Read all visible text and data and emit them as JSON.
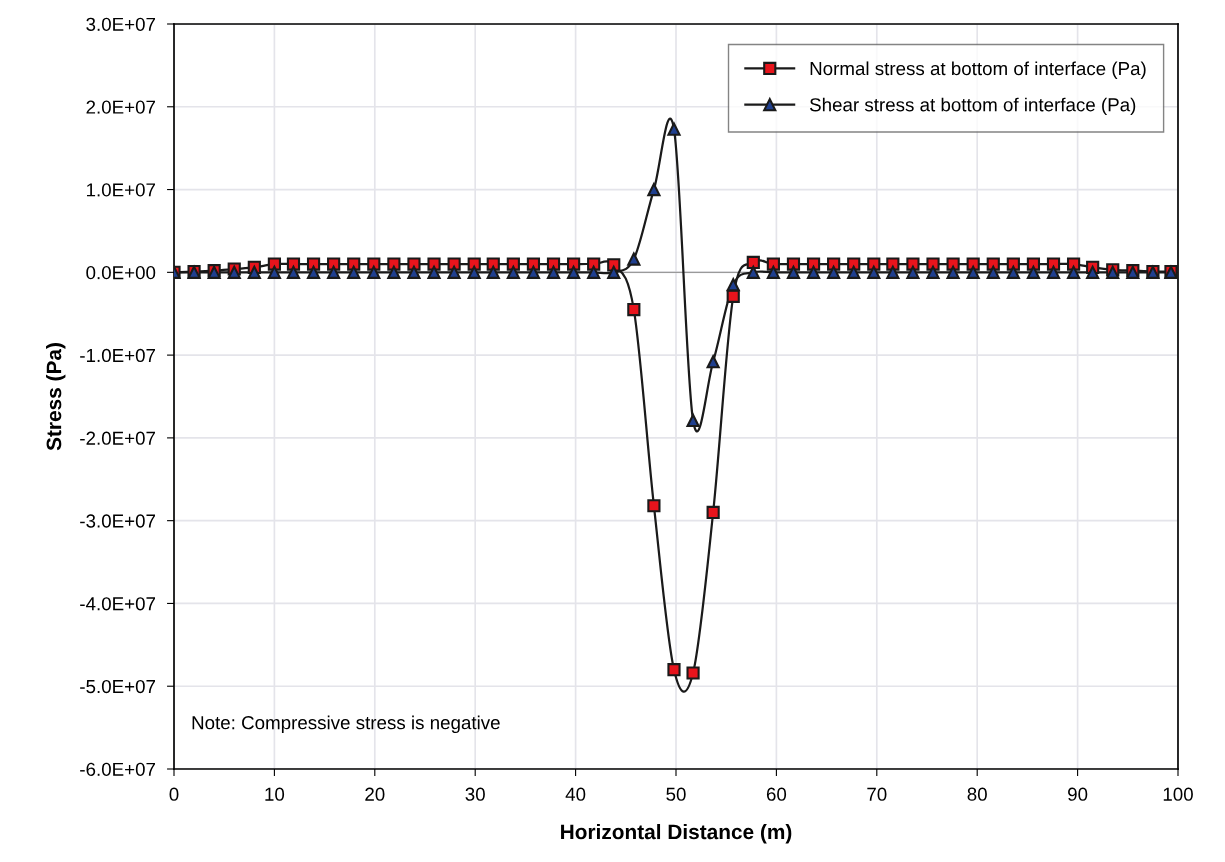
{
  "chart_data": {
    "type": "line",
    "xlabel": "Horizontal Distance (m)",
    "ylabel": "Stress (Pa)",
    "x": [
      0,
      2,
      4,
      6,
      8,
      10,
      11.9,
      13.9,
      15.9,
      17.9,
      19.9,
      21.9,
      23.9,
      25.9,
      27.9,
      29.9,
      31.8,
      33.8,
      35.8,
      37.8,
      39.8,
      41.8,
      43.8,
      45.8,
      47.8,
      49.8,
      51.7,
      53.7,
      55.7,
      57.7,
      59.7,
      61.7,
      63.7,
      65.7,
      67.7,
      69.7,
      71.6,
      73.6,
      75.6,
      77.6,
      79.6,
      81.6,
      83.6,
      85.6,
      87.6,
      89.6,
      91.5,
      93.5,
      95.5,
      97.5,
      99.3
    ],
    "series": [
      {
        "name": "Normal stress at bottom of interface (Pa)",
        "color": "#e8141c",
        "marker": "square",
        "values": [
          0,
          100000,
          200000,
          400000,
          600000,
          1000000,
          1000000,
          1000000,
          1000000,
          1000000,
          1000000,
          1000000,
          1000000,
          1000000,
          1000000,
          1000000,
          1000000,
          1000000,
          1000000,
          1000000,
          1000000,
          1000000,
          900000,
          -4500000,
          -28200000,
          -48000000,
          -48400000,
          -29000000,
          -2900000,
          1200000,
          1000000,
          1000000,
          1000000,
          1000000,
          1000000,
          1000000,
          1000000,
          1000000,
          1000000,
          1000000,
          1000000,
          1000000,
          1000000,
          1000000,
          1000000,
          1000000,
          600000,
          300000,
          200000,
          100000,
          100000
        ]
      },
      {
        "name": "Shear stress at bottom of interface (Pa)",
        "color": "#1f3f8f",
        "marker": "triangle",
        "values": [
          0,
          0,
          0,
          0,
          0,
          0,
          0,
          0,
          0,
          0,
          0,
          0,
          0,
          0,
          0,
          0,
          0,
          0,
          0,
          0,
          0,
          0,
          0,
          1600000,
          10000000,
          17300000,
          -17900000,
          -10800000,
          -1500000,
          0,
          0,
          0,
          0,
          0,
          0,
          0,
          0,
          0,
          0,
          0,
          0,
          0,
          0,
          0,
          0,
          0,
          0,
          0,
          0,
          0,
          0
        ]
      }
    ],
    "xlim": [
      0,
      100
    ],
    "xticks": [
      0,
      10,
      20,
      30,
      40,
      50,
      60,
      70,
      80,
      90,
      100
    ],
    "ylim": [
      -60000000,
      30000000
    ],
    "yticks": [
      {
        "value": -60000000,
        "label": "-6.0E+07"
      },
      {
        "value": -50000000,
        "label": "-5.0E+07"
      },
      {
        "value": -40000000,
        "label": "-4.0E+07"
      },
      {
        "value": -30000000,
        "label": "-3.0E+07"
      },
      {
        "value": -20000000,
        "label": "-2.0E+07"
      },
      {
        "value": -10000000,
        "label": "-1.0E+07"
      },
      {
        "value": 0,
        "label": "0.0E+00"
      },
      {
        "value": 10000000,
        "label": "1.0E+07"
      },
      {
        "value": 20000000,
        "label": "2.0E+07"
      },
      {
        "value": 30000000,
        "label": "3.0E+07"
      }
    ],
    "grid": true,
    "legend": "top right",
    "line_style": "solid",
    "ref_lines": [
      {
        "axis": "y",
        "value": 0,
        "color": "#9a9a9a"
      }
    ],
    "annotations": [
      "Note: Compressive stress is negative"
    ]
  }
}
